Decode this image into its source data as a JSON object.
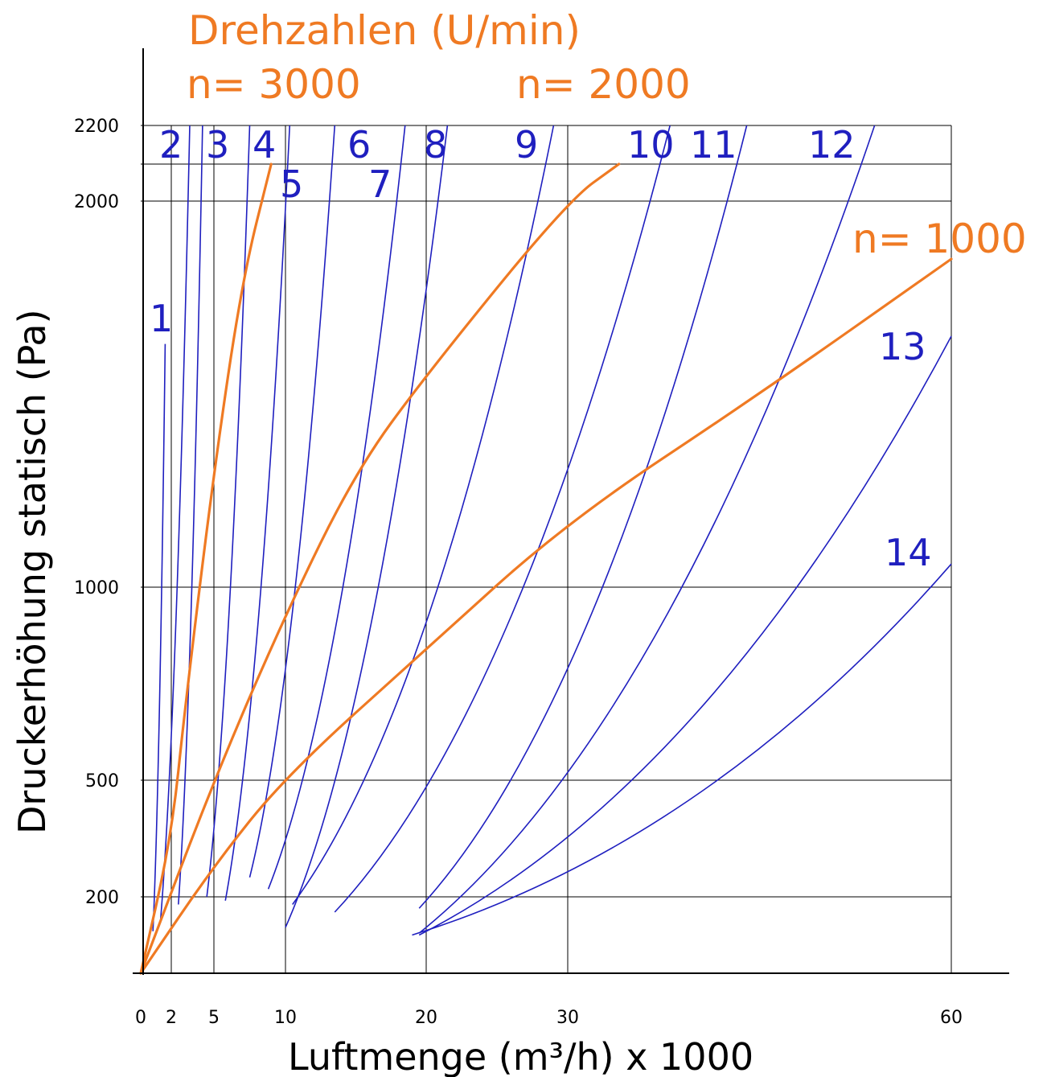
{
  "chart_data": {
    "type": "line",
    "title": "Drehzahlen (U/min)",
    "xlabel": "Luftmenge (m³/h) x 1000",
    "ylabel": "Druckerhöhung statisch (Pa)",
    "x_ticks": [
      0,
      2,
      5,
      10,
      20,
      30,
      60
    ],
    "y_ticks": [
      200,
      500,
      1000,
      2000,
      2200
    ],
    "xlim": [
      0,
      60
    ],
    "ylim": [
      0,
      2200
    ],
    "grid": true,
    "axis_scale": "non-linear (ticks at labelled values)",
    "colors": {
      "fan_curves": "#1f1fbf",
      "speed_lines": "#ef7a23",
      "grid": "#000000"
    },
    "speed_labels": [
      {
        "name": "n= 3000"
      },
      {
        "name": "n= 2000"
      },
      {
        "name": "n= 1000"
      }
    ],
    "speed_series": [
      {
        "name": "n= 3000",
        "points": [
          [
            0,
            0
          ],
          [
            2,
            350
          ],
          [
            3,
            700
          ],
          [
            5,
            1300
          ],
          [
            7,
            1800
          ],
          [
            9,
            2100
          ]
        ]
      },
      {
        "name": "n= 2000",
        "points": [
          [
            0,
            0
          ],
          [
            5,
            500
          ],
          [
            10,
            930
          ],
          [
            15,
            1300
          ],
          [
            20,
            1550
          ],
          [
            30,
            2000
          ],
          [
            34,
            2100
          ]
        ]
      },
      {
        "name": "n= 1000",
        "points": [
          [
            0,
            0
          ],
          [
            5,
            280
          ],
          [
            10,
            510
          ],
          [
            20,
            840
          ],
          [
            30,
            1170
          ],
          [
            45,
            1500
          ],
          [
            60,
            1850
          ]
        ]
      }
    ],
    "fan_series": [
      {
        "name": "1",
        "points": [
          [
            0.8,
            110
          ],
          [
            1.6,
            1630
          ]
        ]
      },
      {
        "name": "2",
        "points": [
          [
            1.3,
            140
          ],
          [
            3.3,
            2200
          ]
        ]
      },
      {
        "name": "3",
        "points": [
          [
            2.5,
            180
          ],
          [
            4.2,
            2200
          ]
        ]
      },
      {
        "name": "4",
        "points": [
          [
            4.5,
            200
          ],
          [
            7.5,
            2200
          ]
        ]
      },
      {
        "name": "5",
        "points": [
          [
            5.8,
            190
          ],
          [
            10.3,
            2200
          ]
        ]
      },
      {
        "name": "6",
        "points": [
          [
            7.5,
            250
          ],
          [
            13.5,
            2200
          ]
        ]
      },
      {
        "name": "7",
        "points": [
          [
            8.8,
            220
          ],
          [
            18.5,
            2200
          ]
        ]
      },
      {
        "name": "8",
        "points": [
          [
            10,
            120
          ],
          [
            21.5,
            2200
          ]
        ]
      },
      {
        "name": "9",
        "points": [
          [
            10.5,
            180
          ],
          [
            29,
            2200
          ]
        ]
      },
      {
        "name": "10",
        "points": [
          [
            13.5,
            160
          ],
          [
            38,
            2200
          ]
        ]
      },
      {
        "name": "11",
        "points": [
          [
            19.5,
            170
          ],
          [
            44,
            2200
          ]
        ]
      },
      {
        "name": "12",
        "points": [
          [
            19.5,
            105
          ],
          [
            54,
            2200
          ]
        ]
      },
      {
        "name": "13",
        "points": [
          [
            19.5,
            100
          ],
          [
            60,
            1650
          ]
        ]
      },
      {
        "name": "14",
        "points": [
          [
            19,
            100
          ],
          [
            60,
            1060
          ]
        ]
      }
    ]
  }
}
